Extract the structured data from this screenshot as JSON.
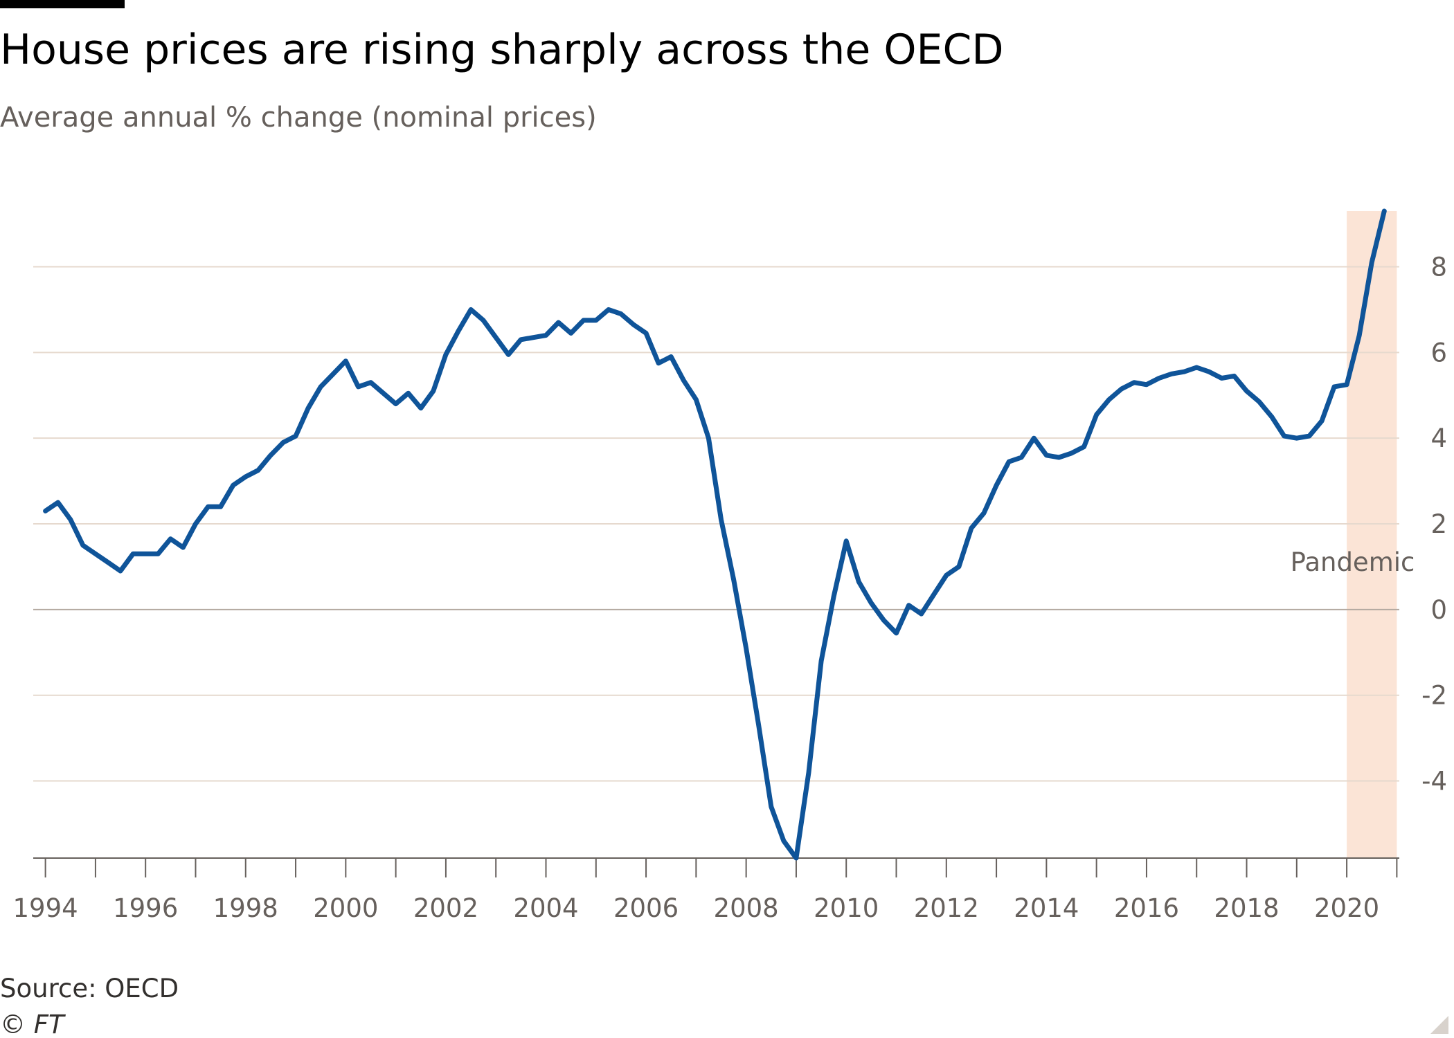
{
  "header": {
    "title": "House prices are rising sharply across the OECD",
    "subtitle": "Average annual % change (nominal prices)"
  },
  "footer": {
    "source": "Source: OECD",
    "copyright": "© FT"
  },
  "colors": {
    "line": "#0f5499",
    "shade": "#fbe4d6",
    "top_bar": "#000000"
  },
  "chart_data": {
    "type": "line",
    "title": "House prices are rising sharply across the OECD",
    "subtitle": "Average annual % change (nominal prices)",
    "xlabel": "",
    "ylabel": "",
    "xlim": [
      1993.95,
      2021.05
    ],
    "ylim": [
      -5.8,
      9.3
    ],
    "x_ticks": [
      1994,
      1996,
      1998,
      2000,
      2002,
      2004,
      2006,
      2008,
      2010,
      2012,
      2014,
      2016,
      2018,
      2020
    ],
    "y_ticks": [
      -4,
      -2,
      0,
      2,
      4,
      6,
      8
    ],
    "y_axis_position": "right",
    "grid": true,
    "legend": "none",
    "shaded_regions": [
      {
        "label": "Pandemic",
        "start": 2020.0,
        "end": 2021.0,
        "color": "#fbe4d6"
      }
    ],
    "series": [
      {
        "color": "#0f5499",
        "points": [
          [
            1994.0,
            2.3
          ],
          [
            1994.25,
            2.5
          ],
          [
            1994.5,
            2.1
          ],
          [
            1994.75,
            1.5
          ],
          [
            1995.0,
            1.3
          ],
          [
            1995.25,
            1.1
          ],
          [
            1995.5,
            0.9
          ],
          [
            1995.75,
            1.3
          ],
          [
            1996.0,
            1.3
          ],
          [
            1996.25,
            1.3
          ],
          [
            1996.5,
            1.65
          ],
          [
            1996.75,
            1.45
          ],
          [
            1997.0,
            2.0
          ],
          [
            1997.25,
            2.4
          ],
          [
            1997.5,
            2.4
          ],
          [
            1997.75,
            2.9
          ],
          [
            1998.0,
            3.1
          ],
          [
            1998.25,
            3.25
          ],
          [
            1998.5,
            3.6
          ],
          [
            1998.75,
            3.9
          ],
          [
            1999.0,
            4.05
          ],
          [
            1999.25,
            4.7
          ],
          [
            1999.5,
            5.2
          ],
          [
            1999.75,
            5.5
          ],
          [
            2000.0,
            5.8
          ],
          [
            2000.25,
            5.2
          ],
          [
            2000.5,
            5.3
          ],
          [
            2000.75,
            5.05
          ],
          [
            2001.0,
            4.8
          ],
          [
            2001.25,
            5.05
          ],
          [
            2001.5,
            4.7
          ],
          [
            2001.75,
            5.1
          ],
          [
            2002.0,
            5.95
          ],
          [
            2002.25,
            6.5
          ],
          [
            2002.5,
            7.0
          ],
          [
            2002.75,
            6.75
          ],
          [
            2003.0,
            6.35
          ],
          [
            2003.25,
            5.95
          ],
          [
            2003.5,
            6.3
          ],
          [
            2003.75,
            6.35
          ],
          [
            2004.0,
            6.4
          ],
          [
            2004.25,
            6.7
          ],
          [
            2004.5,
            6.45
          ],
          [
            2004.75,
            6.75
          ],
          [
            2005.0,
            6.75
          ],
          [
            2005.25,
            7.0
          ],
          [
            2005.5,
            6.9
          ],
          [
            2005.75,
            6.65
          ],
          [
            2006.0,
            6.45
          ],
          [
            2006.25,
            5.75
          ],
          [
            2006.5,
            5.9
          ],
          [
            2006.75,
            5.35
          ],
          [
            2007.0,
            4.9
          ],
          [
            2007.25,
            4.0
          ],
          [
            2007.5,
            2.1
          ],
          [
            2007.75,
            0.7
          ],
          [
            2008.0,
            -0.9
          ],
          [
            2008.25,
            -2.7
          ],
          [
            2008.5,
            -4.6
          ],
          [
            2008.75,
            -5.4
          ],
          [
            2009.0,
            -5.8
          ],
          [
            2009.25,
            -3.8
          ],
          [
            2009.5,
            -1.2
          ],
          [
            2009.75,
            0.3
          ],
          [
            2010.0,
            1.6
          ],
          [
            2010.25,
            0.65
          ],
          [
            2010.5,
            0.15
          ],
          [
            2010.75,
            -0.25
          ],
          [
            2011.0,
            -0.55
          ],
          [
            2011.25,
            0.1
          ],
          [
            2011.5,
            -0.1
          ],
          [
            2011.75,
            0.35
          ],
          [
            2012.0,
            0.8
          ],
          [
            2012.25,
            1.0
          ],
          [
            2012.5,
            1.9
          ],
          [
            2012.75,
            2.25
          ],
          [
            2013.0,
            2.9
          ],
          [
            2013.25,
            3.45
          ],
          [
            2013.5,
            3.55
          ],
          [
            2013.75,
            4.0
          ],
          [
            2014.0,
            3.6
          ],
          [
            2014.25,
            3.55
          ],
          [
            2014.5,
            3.65
          ],
          [
            2014.75,
            3.8
          ],
          [
            2015.0,
            4.55
          ],
          [
            2015.25,
            4.9
          ],
          [
            2015.5,
            5.15
          ],
          [
            2015.75,
            5.3
          ],
          [
            2016.0,
            5.25
          ],
          [
            2016.25,
            5.4
          ],
          [
            2016.5,
            5.5
          ],
          [
            2016.75,
            5.55
          ],
          [
            2017.0,
            5.65
          ],
          [
            2017.25,
            5.55
          ],
          [
            2017.5,
            5.4
          ],
          [
            2017.75,
            5.45
          ],
          [
            2018.0,
            5.1
          ],
          [
            2018.25,
            4.85
          ],
          [
            2018.5,
            4.5
          ],
          [
            2018.75,
            4.05
          ],
          [
            2019.0,
            4.0
          ],
          [
            2019.25,
            4.05
          ],
          [
            2019.5,
            4.4
          ],
          [
            2019.75,
            5.2
          ],
          [
            2020.0,
            5.25
          ],
          [
            2020.25,
            6.4
          ],
          [
            2020.5,
            8.1
          ],
          [
            2020.75,
            9.3
          ]
        ]
      }
    ]
  }
}
